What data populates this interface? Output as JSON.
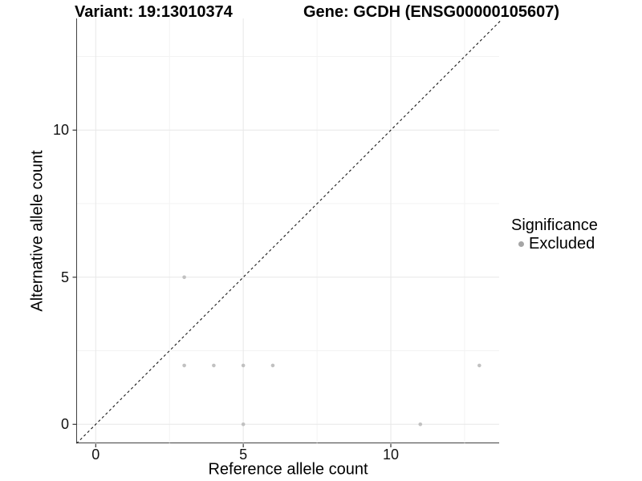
{
  "header": {
    "variant_title": "Variant: 19:13010374",
    "gene_title": "Gene: GCDH (ENSG00000105607)"
  },
  "chart_data": {
    "type": "scatter",
    "title_left": "Variant: 19:13010374",
    "title_right": "Gene: GCDH (ENSG00000105607)",
    "xlabel": "Reference allele count",
    "ylabel": "Alternative allele count",
    "xlim": [
      -0.65,
      13.72
    ],
    "ylim": [
      -0.65,
      13.72
    ],
    "x_ticks": [
      {
        "value": 0,
        "label": "0"
      },
      {
        "value": 5,
        "label": "5"
      },
      {
        "value": 10,
        "label": "10"
      }
    ],
    "y_ticks": [
      {
        "value": 0,
        "label": "0"
      },
      {
        "value": 5,
        "label": "5"
      },
      {
        "value": 10,
        "label": "10"
      }
    ],
    "x_minor_gridlines": [
      2.5,
      7.5,
      12.5
    ],
    "y_minor_gridlines": [
      2.5,
      7.5,
      12.5
    ],
    "grid": true,
    "identity_line": {
      "style": "dashed",
      "equation": "y = x",
      "from": [
        -0.65,
        -0.65
      ],
      "to": [
        13.72,
        13.72
      ]
    },
    "series": [
      {
        "name": "Excluded",
        "points": [
          {
            "x": 3,
            "y": 5
          },
          {
            "x": 3,
            "y": 2
          },
          {
            "x": 4,
            "y": 2
          },
          {
            "x": 5,
            "y": 2
          },
          {
            "x": 6,
            "y": 2
          },
          {
            "x": 13,
            "y": 2
          },
          {
            "x": 5,
            "y": 0
          },
          {
            "x": 11,
            "y": 0
          }
        ]
      }
    ],
    "legend": {
      "position": "right",
      "title": "Significance",
      "items": [
        {
          "label": "Excluded",
          "color": "#a5a5a5"
        }
      ]
    }
  },
  "colors": {
    "point": "#c1c1c1",
    "legend_dot": "#a5a5a5",
    "grid_major": "#e7e7e7",
    "grid_minor": "#f3f3f3",
    "axis_line": "#404040",
    "tick_mark": "#333333",
    "dashed_line": "#1a1a1a",
    "text": "#000000"
  }
}
